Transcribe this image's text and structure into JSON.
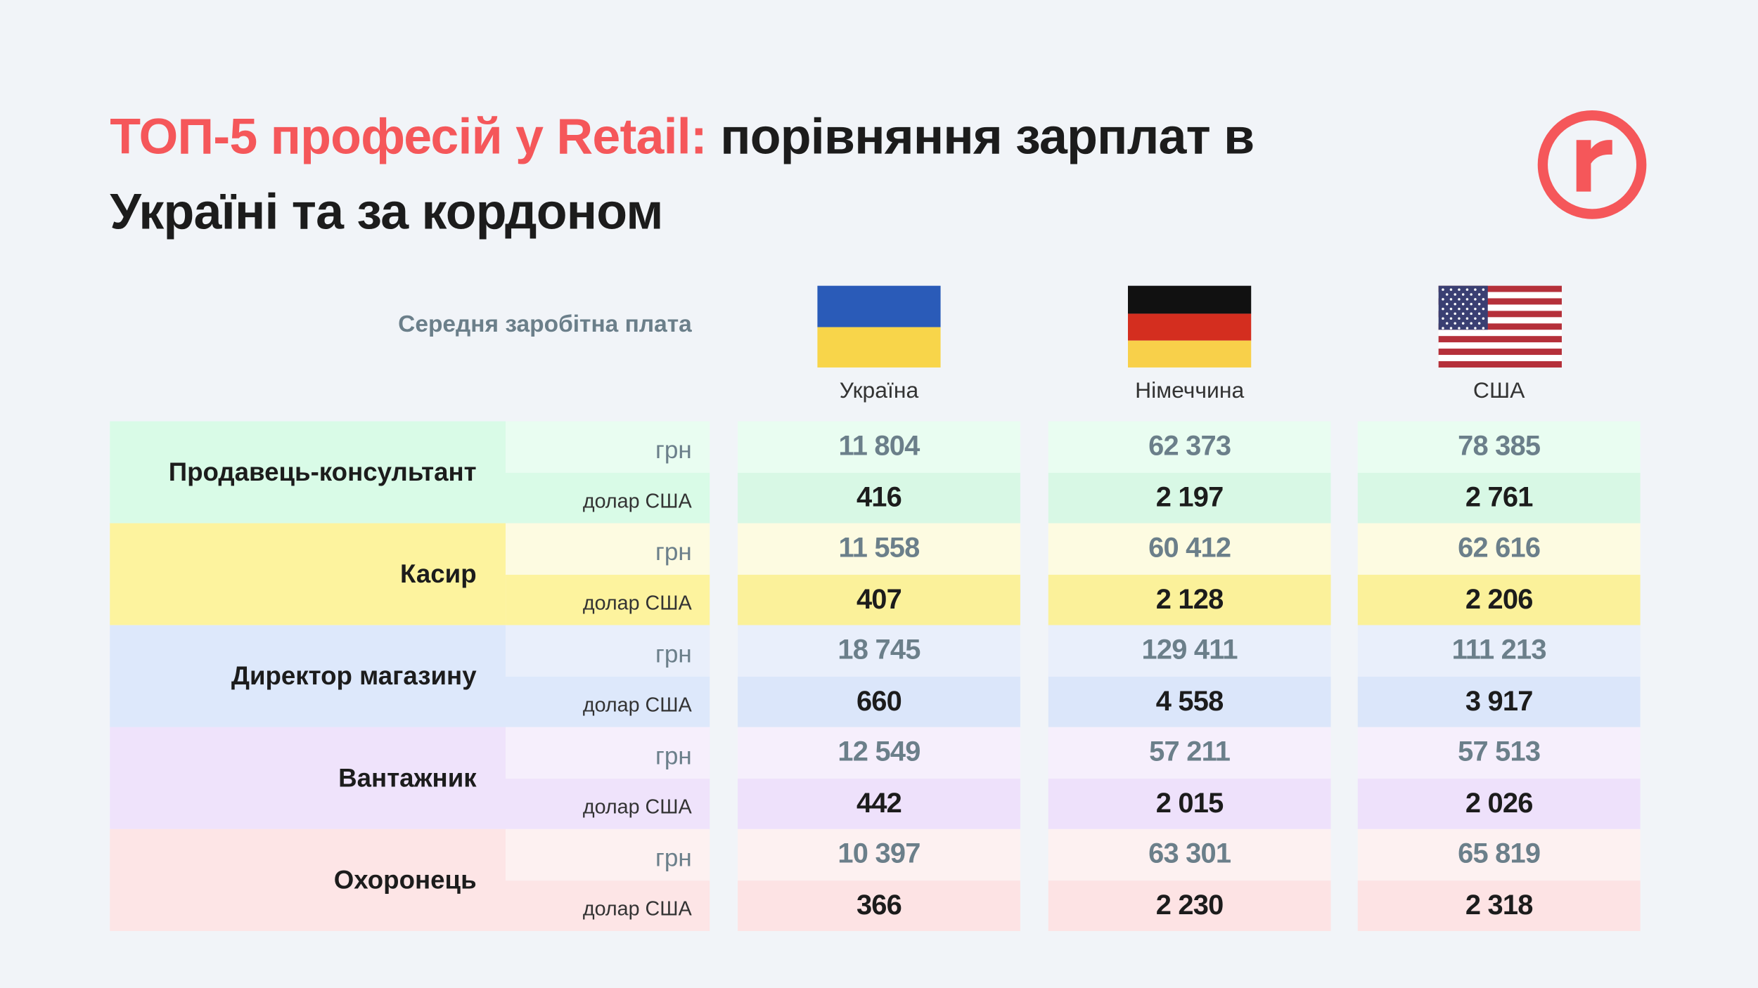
{
  "header": {
    "title_highlight": "ТОП-5 професій у Retail:",
    "title_line1_rest": "порівняння зарплат в",
    "title_line2": "Україні та за кордоном",
    "column_label": "Середня заробітна плата"
  },
  "countries": [
    "Україна",
    "Німеччина",
    "США"
  ],
  "rows": [
    {
      "profession": "Продавець-консультант",
      "units": [
        "грн",
        "долар США"
      ],
      "values": [
        [
          "11 804",
          "62 373",
          "78 385"
        ],
        [
          "416",
          "2 197",
          "2 761"
        ]
      ]
    },
    {
      "profession": "Касир",
      "units": [
        "грн",
        "долар США"
      ],
      "values": [
        [
          "11 558",
          "60 412",
          "62 616"
        ],
        [
          "407",
          "2 128",
          "2 206"
        ]
      ]
    },
    {
      "profession": "Директор магазину",
      "units": [
        "грн",
        "долар США"
      ],
      "values": [
        [
          "18 745",
          "129 411",
          "111 213"
        ],
        [
          "660",
          "4 558",
          "3 917"
        ]
      ]
    },
    {
      "profession": "Вантажник",
      "units": [
        "грн",
        "долар США"
      ],
      "values": [
        [
          "12 549",
          "57 211",
          "57 513"
        ],
        [
          "442",
          "2 015",
          "2 026"
        ]
      ]
    },
    {
      "profession": "Охоронець",
      "units": [
        "грн",
        "долар США"
      ],
      "values": [
        [
          "10 397",
          "63 301",
          "65 819"
        ],
        [
          "366",
          "2 230",
          "2 318"
        ]
      ]
    }
  ]
}
